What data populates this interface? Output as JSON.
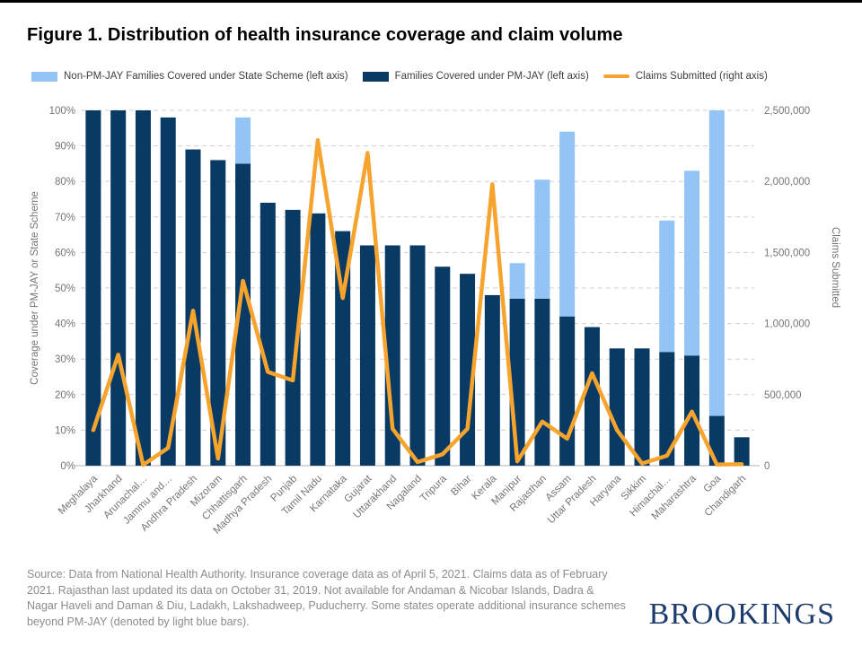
{
  "page": {
    "title": "Figure 1. Distribution of health insurance coverage and claim volume",
    "source_note": "Source: Data from National Health Authority. Insurance coverage data as of April 5, 2021. Claims data as of February 2021. Rajasthan last updated its data on October 31, 2019. Not available for Andaman & Nicobar Islands, Dadra & Nagar Haveli and Daman & Diu, Ladakh, Lakshadweep, Puducherry. Some states operate additional insurance schemes beyond PM-JAY (denoted by light blue bars).",
    "brand": "BROOKINGS"
  },
  "colors": {
    "state_scheme_bar": "#92c4f5",
    "pmjay_bar": "#083a63",
    "claims_line": "#f7a42f",
    "grid": "#cfcfcf",
    "axis_text": "#757575",
    "baseline": "#b0b0b0",
    "brand_navy": "#1d3c6e"
  },
  "legend": [
    {
      "label": "Non-PM-JAY Families Covered under State Scheme (left axis)",
      "swatch": "rect",
      "color": "#92c4f5"
    },
    {
      "label": "Families Covered under PM-JAY (left axis)",
      "swatch": "rect",
      "color": "#083a63"
    },
    {
      "label": "Claims Submitted (right axis)",
      "swatch": "line",
      "color": "#f7a42f"
    }
  ],
  "chart_data": {
    "type": "bar",
    "subtype": "stacked-bars-with-line-overlay",
    "categories": [
      "Meghalaya",
      "Jharkhand",
      "Arunachal…",
      "Jammu and…",
      "Andhra Pradesh",
      "Mizoram",
      "Chhattisgarh",
      "Madhya Pradesh",
      "Punjab",
      "Tamil Nadu",
      "Karnataka",
      "Gujarat",
      "Uttarakhand",
      "Nagaland",
      "Tripura",
      "Bihar",
      "Kerala",
      "Manipur",
      "Rajasthan",
      "Assam",
      "Uttar Pradesh",
      "Haryana",
      "Sikkim",
      "Himachal…",
      "Maharashtra",
      "Goa",
      "Chandigarh"
    ],
    "series": [
      {
        "name": "Families Covered under PM-JAY (left axis)",
        "type": "bar",
        "axis": "left",
        "unit": "percent",
        "values": [
          100,
          100,
          100,
          98,
          89,
          86,
          85,
          74,
          72,
          71,
          66,
          62,
          62,
          62,
          56,
          54,
          48,
          47,
          47,
          42,
          39,
          33,
          33,
          32,
          31,
          14,
          8
        ]
      },
      {
        "name": "Non-PM-JAY Families Covered under State Scheme (left axis)",
        "type": "bar",
        "axis": "left",
        "unit": "percent",
        "stacked_on_previous": true,
        "values": [
          0,
          0,
          0,
          0,
          0,
          0,
          13,
          0,
          0,
          0,
          0,
          0,
          0,
          0,
          0,
          0,
          0,
          10,
          33.5,
          52,
          0,
          0,
          0,
          37,
          52,
          86,
          0
        ]
      },
      {
        "name": "Claims Submitted (right axis)",
        "type": "line",
        "axis": "right",
        "unit": "claims",
        "values": [
          250000,
          780000,
          5000,
          125000,
          1090000,
          50000,
          1300000,
          660000,
          600000,
          2290000,
          1180000,
          2200000,
          260000,
          25000,
          80000,
          260000,
          1980000,
          30000,
          310000,
          190000,
          650000,
          250000,
          15000,
          70000,
          380000,
          8000,
          10000
        ]
      }
    ],
    "left_axis": {
      "label": "Coverage under PM-JAY or State Scheme",
      "min": 0,
      "max": 100,
      "tick_labels": [
        "0%",
        "10%",
        "20%",
        "30%",
        "40%",
        "50%",
        "60%",
        "70%",
        "80%",
        "90%",
        "100%"
      ]
    },
    "right_axis": {
      "label": "Claims Submitted",
      "min": 0,
      "max": 2500000,
      "tick_labels": [
        "0",
        "500,000",
        "1,000,000",
        "1,500,000",
        "2,000,000",
        "2,500,000"
      ]
    },
    "grid": "horizontal-dashed",
    "legend_position": "top"
  }
}
